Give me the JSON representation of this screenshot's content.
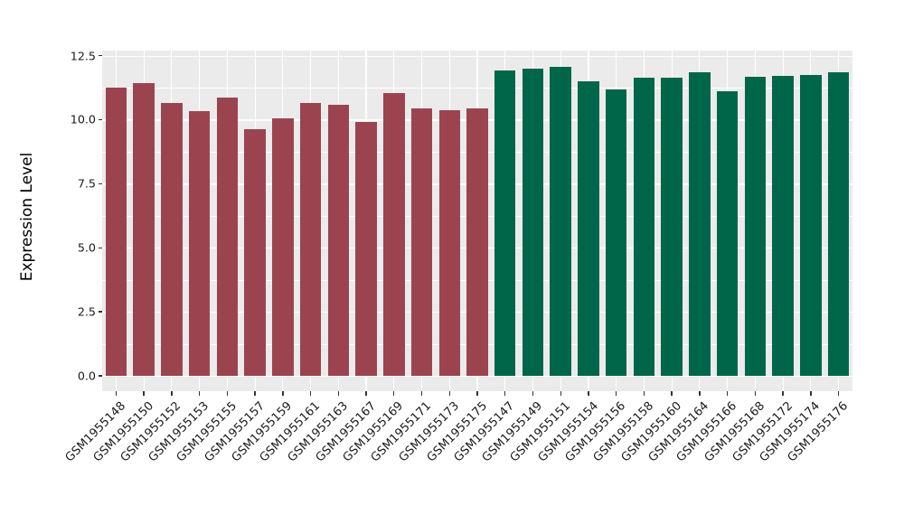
{
  "chart_data": {
    "type": "bar",
    "title": "",
    "xlabel": "",
    "ylabel": "Expression Level",
    "ylim": [
      0,
      12.5
    ],
    "ytick_labels": [
      "0.0",
      "2.5",
      "5.0",
      "7.5",
      "10.0",
      "12.5"
    ],
    "ytick_values": [
      0,
      2.5,
      5.0,
      7.5,
      10.0,
      12.5
    ],
    "yminor_values": [
      1.25,
      3.75,
      6.25,
      8.75,
      11.25
    ],
    "grid": true,
    "legend": "none",
    "panel_bg_color": "#EBEBEB",
    "grid_color": "#FFFFFF",
    "axis_text_color": "#1A1A1A",
    "group_colors": {
      "group1": "#9B4450",
      "group2": "#00664A"
    },
    "bars": [
      {
        "label": "GSM1955148",
        "value": 11.25,
        "group": "group1"
      },
      {
        "label": "GSM1955150",
        "value": 11.43,
        "group": "group1"
      },
      {
        "label": "GSM1955152",
        "value": 10.66,
        "group": "group1"
      },
      {
        "label": "GSM1955153",
        "value": 10.33,
        "group": "group1"
      },
      {
        "label": "GSM1955155",
        "value": 10.87,
        "group": "group1"
      },
      {
        "label": "GSM1955157",
        "value": 9.62,
        "group": "group1"
      },
      {
        "label": "GSM1955159",
        "value": 10.05,
        "group": "group1"
      },
      {
        "label": "GSM1955161",
        "value": 10.64,
        "group": "group1"
      },
      {
        "label": "GSM1955163",
        "value": 10.57,
        "group": "group1"
      },
      {
        "label": "GSM1955167",
        "value": 9.91,
        "group": "group1"
      },
      {
        "label": "GSM1955169",
        "value": 11.02,
        "group": "group1"
      },
      {
        "label": "GSM1955171",
        "value": 10.44,
        "group": "group1"
      },
      {
        "label": "GSM1955173",
        "value": 10.36,
        "group": "group1"
      },
      {
        "label": "GSM1955175",
        "value": 10.44,
        "group": "group1"
      },
      {
        "label": "GSM1955147",
        "value": 11.91,
        "group": "group2"
      },
      {
        "label": "GSM1955149",
        "value": 12.0,
        "group": "group2"
      },
      {
        "label": "GSM1955151",
        "value": 12.07,
        "group": "group2"
      },
      {
        "label": "GSM1955154",
        "value": 11.49,
        "group": "group2"
      },
      {
        "label": "GSM1955156",
        "value": 11.18,
        "group": "group2"
      },
      {
        "label": "GSM1955158",
        "value": 11.63,
        "group": "group2"
      },
      {
        "label": "GSM1955160",
        "value": 11.63,
        "group": "group2"
      },
      {
        "label": "GSM1955164",
        "value": 11.84,
        "group": "group2"
      },
      {
        "label": "GSM1955166",
        "value": 11.12,
        "group": "group2"
      },
      {
        "label": "GSM1955168",
        "value": 11.68,
        "group": "group2"
      },
      {
        "label": "GSM1955172",
        "value": 11.71,
        "group": "group2"
      },
      {
        "label": "GSM1955174",
        "value": 11.74,
        "group": "group2"
      },
      {
        "label": "GSM1955176",
        "value": 11.85,
        "group": "group2"
      }
    ]
  }
}
